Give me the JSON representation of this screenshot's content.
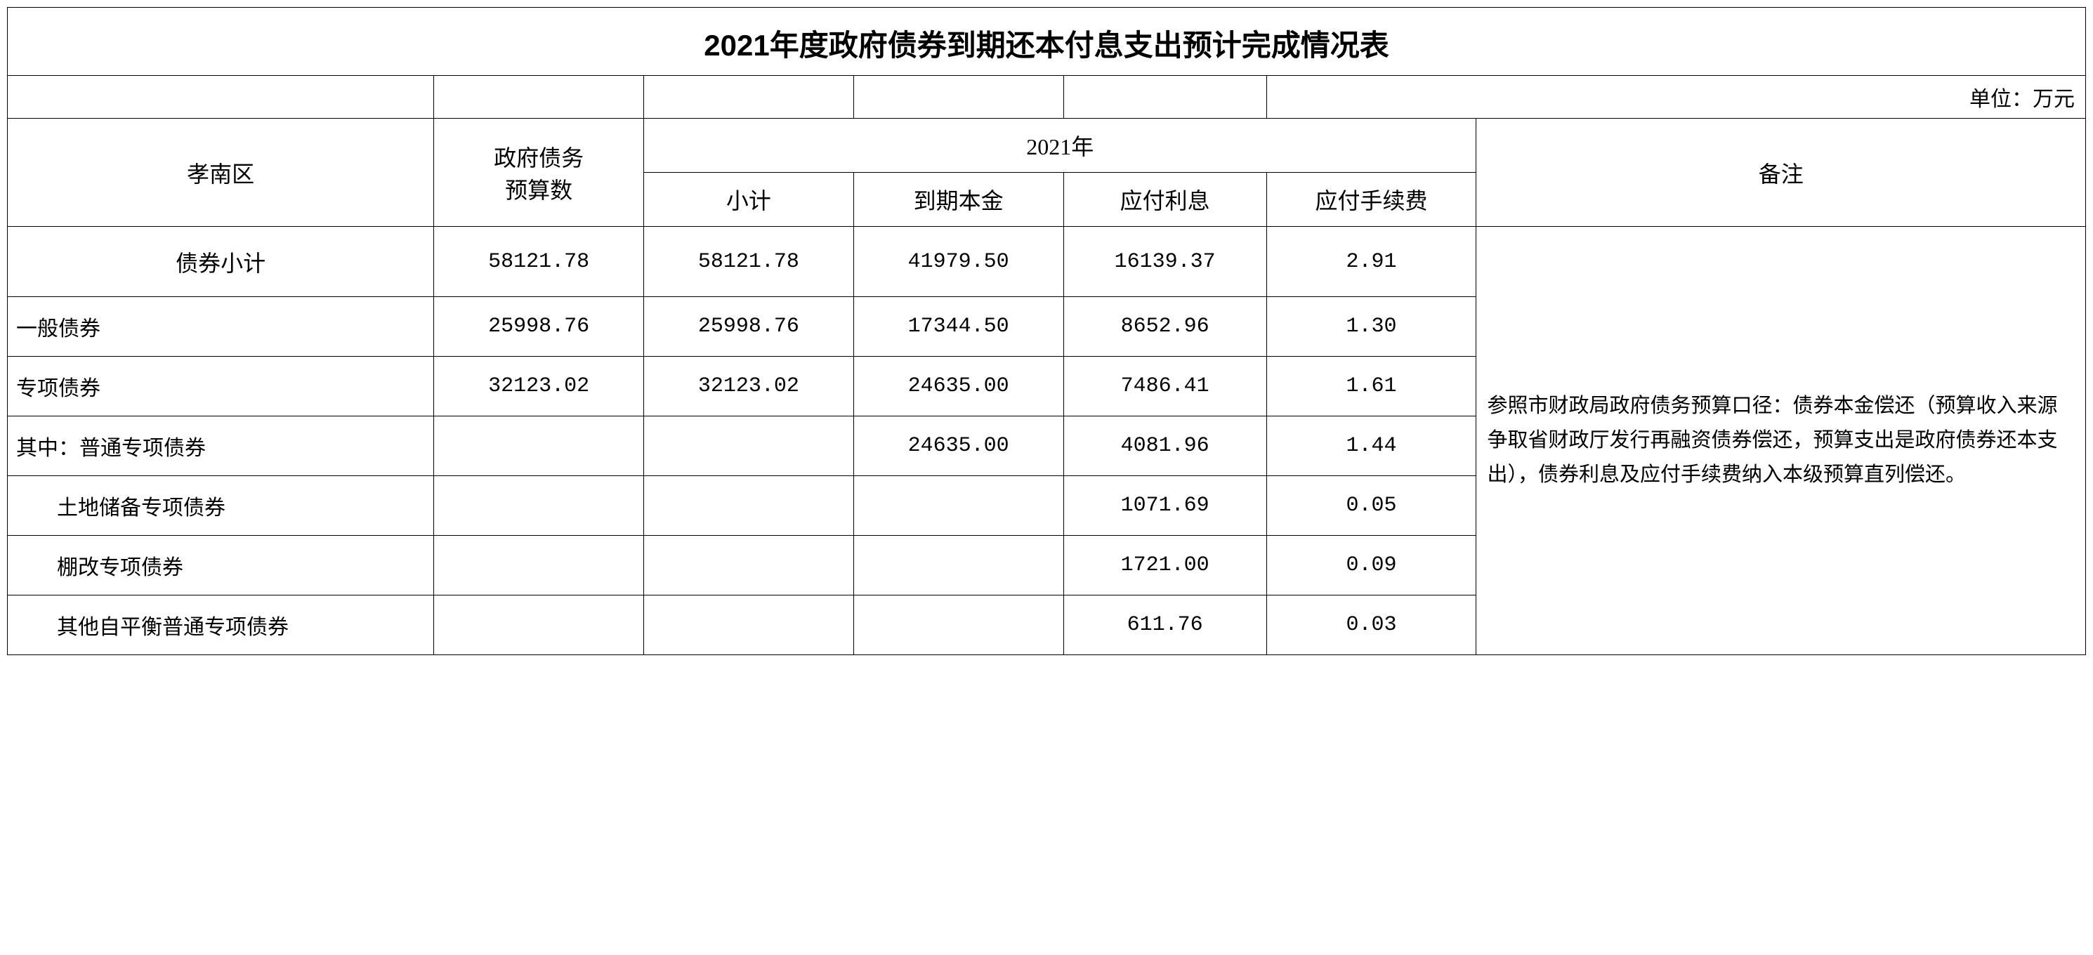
{
  "title": "2021年度政府债券到期还本付息支出预计完成情况表",
  "unit_label": "单位：万元",
  "headers": {
    "region": "孝南区",
    "budget": "政府债务\n预算数",
    "year": "2021年",
    "subtotal": "小计",
    "principal": "到期本金",
    "interest": "应付利息",
    "fee": "应付手续费",
    "remark": "备注"
  },
  "remark_text": "参照市财政局政府债务预算口径：债券本金偿还（预算收入来源争取省财政厅发行再融资债券偿还，预算支出是政府债券还本支出），债券利息及应付手续费纳入本级预算直列偿还。",
  "rows": [
    {
      "label": "债券小计",
      "indent": "center",
      "budget": "58121.78",
      "subtotal": "58121.78",
      "principal": "41979.50",
      "interest": "16139.37",
      "fee": "2.91"
    },
    {
      "label": "一般债券",
      "indent": "1",
      "budget": "25998.76",
      "subtotal": "25998.76",
      "principal": "17344.50",
      "interest": "8652.96",
      "fee": "1.30"
    },
    {
      "label": "专项债券",
      "indent": "1",
      "budget": "32123.02",
      "subtotal": "32123.02",
      "principal": "24635.00",
      "interest": "7486.41",
      "fee": "1.61"
    },
    {
      "label": "其中：普通专项债券",
      "indent": "1",
      "budget": "",
      "subtotal": "",
      "principal": "24635.00",
      "interest": "4081.96",
      "fee": "1.44"
    },
    {
      "label": "土地储备专项债券",
      "indent": "2",
      "budget": "",
      "subtotal": "",
      "principal": "",
      "interest": "1071.69",
      "fee": "0.05"
    },
    {
      "label": "棚改专项债券",
      "indent": "2",
      "budget": "",
      "subtotal": "",
      "principal": "",
      "interest": "1721.00",
      "fee": "0.09"
    },
    {
      "label": "其他自平衡普通专项债券",
      "indent": "2",
      "budget": "",
      "subtotal": "",
      "principal": "",
      "interest": "611.76",
      "fee": "0.03"
    }
  ],
  "styling": {
    "background_color": "#ffffff",
    "border_color": "#000000",
    "title_fontsize": 42,
    "header_fontsize": 32,
    "cell_fontsize": 30,
    "remark_fontsize": 29,
    "font_family_title": "SimHei",
    "font_family_body": "SimSun",
    "font_family_numeric": "Courier New"
  }
}
